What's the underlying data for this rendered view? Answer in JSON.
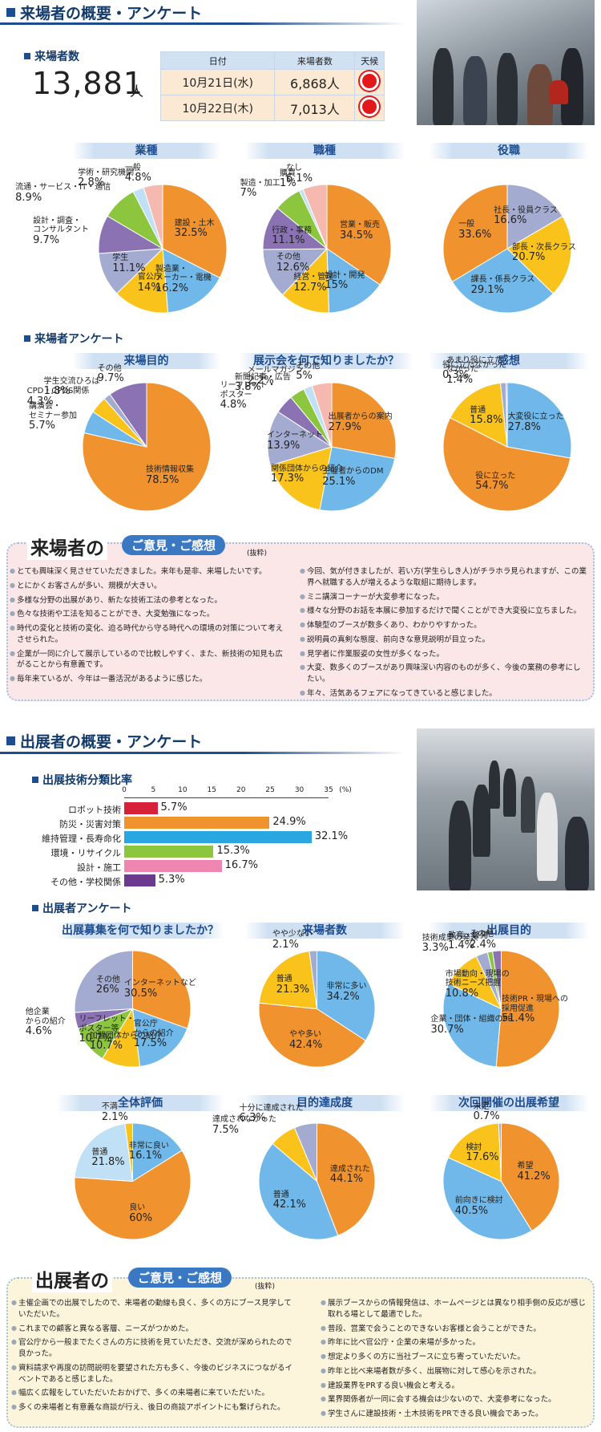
{
  "visitor_section": {
    "title": "来場者の概要・アンケート"
  },
  "visitor_count": {
    "label": "来場者数",
    "total": "13,881",
    "unit": "人"
  },
  "attendance_table": {
    "headers": [
      "日付",
      "来場者数",
      "天候"
    ],
    "rows": [
      {
        "date": "10月21日(水)",
        "count": "6,868人",
        "weather": "sunny"
      },
      {
        "date": "10月22日(木)",
        "count": "7,013人",
        "weather": "sunny"
      }
    ]
  },
  "survey_visitor": {
    "title": "来場者アンケート"
  },
  "exhibitor_section": {
    "title": "出展者の概要・アンケート"
  },
  "exhibit_class": {
    "title": "出展技術分類比率"
  },
  "survey_exhibitor": {
    "title": "出展者アンケート"
  },
  "visitor_opinions": {
    "title": "来場者の",
    "badge": "ご意見・ご感想",
    "note": "(抜粋)",
    "left": [
      "とても興味深く見させていただきました。来年も是非、来場したいです。",
      "とにかくお客さんが多い、規模が大きい。",
      "多様な分野の出展があり、新たな技術工法の参考となった。",
      "色々な技術や工法を知ることができ、大変勉強になった。",
      "時代の変化と技術の変化、迫る時代から守る時代への環境の対策について考えさせられた。",
      "企業が一同に介して展示しているので比較しやすく、また、新技術の知見も広がることから有意義です。",
      "毎年来ているが、今年は一番活況があるように感じた。"
    ],
    "right": [
      "今回、気が付きましたが、若い方(学生らしき人)がチラホラ見られますが、この業界へ就職する人が増えるような取組に期待します。",
      "ミニ講演コーナーが大変参考になった。",
      "様々な分野のお話を本展に参加するだけで聞くことができ大変役に立ちました。",
      "体験型のブースが数多くあり、わかりやすかった。",
      "説明員の真剣な態度、前向きな意見説明が目立った。",
      "見学者に作業服姿の女性が多くなった。",
      "大変、数多くのブースがあり興味深い内容のものが多く、今後の業務の参考にしたい。",
      "年々、活気あるフェアになってきていると感じました。"
    ]
  },
  "exhibitor_opinions": {
    "title": "出展者の",
    "badge": "ご意見・ご感想",
    "note": "(抜粋)",
    "left": [
      "主催企画での出展でしたので、来場者の動線も良く、多くの方にブース見学していただいた。",
      "これまでの顧客と異なる客層、ニーズがつかめた。",
      "官公庁から一般までたくさんの方に技術を見ていただき、交流が深められたので良かった。",
      "資料請求や再度の訪問説明を要望された方も多く、今後のビジネスにつながるイベントであると感じました。",
      "幅広く広報をしていただいたおかげで、多くの来場者に来ていただいた。",
      "多くの来場者と有意義な商談が行え、後日の商談アポイントにも繋げられた。"
    ],
    "right": [
      "展示ブースからの情報発信は、ホームページとは異なり相手側の反応が感じ取れる場として最適でした。",
      "普段、営業で会うことのできないお客様と会うことができた。",
      "昨年に比べ官公庁・企業の来場が多かった。",
      "想定より多くの方に当社ブースに立ち寄っていただいた。",
      "昨年と比べ来場者数が多く、出展物に対して感心を示された。",
      "建設業界をPRする良い機会と考える。",
      "業界関係者が一同に会する機会は少ないので、大変参考になった。",
      "学生さんに建設技術・土木技術をPRできる良い機会であった。"
    ]
  },
  "colors": {
    "orange": "#f0932f",
    "blue": "#6fb8e9",
    "yellow": "#f9c31b",
    "grey": "#a3acd0",
    "green": "#8cc63f",
    "purple": "#8a72b3",
    "pink": "#f6b9b0",
    "lightblue": "#bfe0f5",
    "red": "#d7203a",
    "navy": "#1d4d8e"
  },
  "chart_data": [
    {
      "id": "industry",
      "type": "pie",
      "title": "業種",
      "slices": [
        {
          "label": "建設・土木",
          "value": 32.5
        },
        {
          "label": "製造業・メーカー・電機",
          "value": 16.2
        },
        {
          "label": "官公庁",
          "value": 14
        },
        {
          "label": "学生",
          "value": 11.1
        },
        {
          "label": "設計・調査・コンサルタント",
          "value": 9.7
        },
        {
          "label": "流通・サービス・IT・通信",
          "value": 8.9
        },
        {
          "label": "学術・研究機関",
          "value": 2.8
        },
        {
          "label": "一般",
          "value": 4.8
        }
      ]
    },
    {
      "id": "job",
      "type": "pie",
      "title": "職種",
      "slices": [
        {
          "label": "営業・販売",
          "value": 34.5
        },
        {
          "label": "設計・開発",
          "value": 15
        },
        {
          "label": "経営・管理",
          "value": 12.7
        },
        {
          "label": "その他",
          "value": 12.6
        },
        {
          "label": "行政・事務",
          "value": 11.1
        },
        {
          "label": "製造・加工",
          "value": 7
        },
        {
          "label": "購買",
          "value": 1
        },
        {
          "label": "なし",
          "value": 6.1
        }
      ]
    },
    {
      "id": "position",
      "type": "pie",
      "title": "役職",
      "slices": [
        {
          "label": "社長・役員クラス",
          "value": 16.6
        },
        {
          "label": "部長・次長クラス",
          "value": 20.7
        },
        {
          "label": "課長・係長クラス",
          "value": 29.1
        },
        {
          "label": "一般",
          "value": 33.6
        }
      ]
    },
    {
      "id": "purpose",
      "type": "pie",
      "title": "来場目的",
      "slices": [
        {
          "label": "技術情報収集",
          "value": 78.5
        },
        {
          "label": "講演会・セミナー参加",
          "value": 5.7
        },
        {
          "label": "CPD・CPDS関係",
          "value": 4.3
        },
        {
          "label": "学生交流ひろば",
          "value": 1.8
        },
        {
          "label": "その他",
          "value": 9.7
        }
      ]
    },
    {
      "id": "how_know",
      "type": "pie",
      "title": "展示会を何で知りましたか？",
      "slices": [
        {
          "label": "出展者からの案内",
          "value": 27.9
        },
        {
          "label": "主催者からのDM",
          "value": 25.1
        },
        {
          "label": "関係団体からの紹介",
          "value": 17.3
        },
        {
          "label": "インターネット",
          "value": 13.9
        },
        {
          "label": "リーフレット・ポスター",
          "value": 4.8
        },
        {
          "label": "新聞記事・広告",
          "value": 3.8
        },
        {
          "label": "メールマガジン",
          "value": 2.2
        },
        {
          "label": "その他",
          "value": 5
        }
      ]
    },
    {
      "id": "impression",
      "type": "pie",
      "title": "感想",
      "slices": [
        {
          "label": "大変役に立った",
          "value": 27.8
        },
        {
          "label": "役に立った",
          "value": 54.7
        },
        {
          "label": "普通",
          "value": 15.8
        },
        {
          "label": "あまり役に立たなかった",
          "value": 1.4
        },
        {
          "label": "役に立たなかった",
          "value": 0.3
        }
      ]
    },
    {
      "id": "tech_class",
      "type": "bar",
      "title": "出展技術分類比率",
      "categories": [
        "ロボット技術",
        "防災・災害対策",
        "維持管理・長寿命化",
        "環境・リサイクル",
        "設計・施工",
        "その他・学校関係"
      ],
      "values": [
        5.7,
        24.9,
        32.1,
        15.3,
        16.7,
        5.3
      ],
      "xlim": [
        0,
        35
      ],
      "xticks": [
        0,
        5,
        10,
        15,
        20,
        25,
        30,
        35
      ],
      "xunit": "(%)"
    },
    {
      "id": "recruit",
      "type": "pie",
      "title": "出展募集を何で知りましたか？",
      "slices": [
        {
          "label": "インターネットなど",
          "value": 30.5
        },
        {
          "label": "官公庁からの紹介",
          "value": 17.5
        },
        {
          "label": "加盟団体からの紹介",
          "value": 10.7
        },
        {
          "label": "リーフレット・ポスター等",
          "value": 10.7
        },
        {
          "label": "他企業からの紹介",
          "value": 4.6
        },
        {
          "label": "その他",
          "value": 26
        }
      ]
    },
    {
      "id": "visitor_num",
      "type": "pie",
      "title": "来場者数",
      "slices": [
        {
          "label": "非常に多い",
          "value": 34.2
        },
        {
          "label": "やや多い",
          "value": 42.4
        },
        {
          "label": "普通",
          "value": 21.3
        },
        {
          "label": "やや少ない",
          "value": 2.1
        }
      ]
    },
    {
      "id": "exhibit_purpose",
      "type": "pie",
      "title": "出展目的",
      "slices": [
        {
          "label": "技術PR・現場への採用促進",
          "value": 51.4
        },
        {
          "label": "企業・団体・組織のPR",
          "value": 30.7
        },
        {
          "label": "市場動向・現場の技術ニーズ把握",
          "value": 10.8
        },
        {
          "label": "技術成果の発表",
          "value": 3.3
        },
        {
          "label": "教育・啓発",
          "value": 1.4
        },
        {
          "label": "その他",
          "value": 2.4
        }
      ]
    },
    {
      "id": "overall",
      "type": "pie",
      "title": "全体評価",
      "slices": [
        {
          "label": "非常に良い",
          "value": 16.1
        },
        {
          "label": "良い",
          "value": 60
        },
        {
          "label": "普通",
          "value": 21.8
        },
        {
          "label": "不満",
          "value": 2.1
        }
      ]
    },
    {
      "id": "achieve",
      "type": "pie",
      "title": "目的達成度",
      "slices": [
        {
          "label": "達成された",
          "value": 44.1
        },
        {
          "label": "普通",
          "value": 42.1
        },
        {
          "label": "達成されなかった",
          "value": 7.5
        },
        {
          "label": "十分に達成された",
          "value": 6.3
        }
      ]
    },
    {
      "id": "next",
      "type": "pie",
      "title": "次回開催の出展希望",
      "slices": [
        {
          "label": "希望",
          "value": 41.2
        },
        {
          "label": "前向きに検討",
          "value": 40.5
        },
        {
          "label": "検討",
          "value": 17.6
        },
        {
          "label": "未定",
          "value": 0.7
        }
      ]
    }
  ],
  "pie_labels": {
    "industry": [
      [
        "建設・土木",
        "32.5%"
      ],
      [
        "製造業・",
        "メーカー・電機",
        "16.2%"
      ],
      [
        "官公庁",
        "14%"
      ],
      [
        "学生",
        "11.1%"
      ],
      [
        "設計・調査・",
        "コンサルタント",
        "9.7%"
      ],
      [
        "流通・サービス・IT・通信",
        "8.9%"
      ],
      [
        "学術・研究機関",
        "2.8%"
      ],
      [
        "一般",
        "4.8%"
      ]
    ],
    "job": [
      [
        "営業・販売",
        "34.5%"
      ],
      [
        "設計・開発",
        "15%"
      ],
      [
        "経営・管理",
        "12.7%"
      ],
      [
        "その他",
        "12.6%"
      ],
      [
        "行政・事務",
        "11.1%"
      ],
      [
        "製造・加工",
        "7%"
      ],
      [
        "購買",
        "1%"
      ],
      [
        "なし",
        "6.1%"
      ]
    ],
    "position": [
      [
        "社長・役員クラス",
        "16.6%"
      ],
      [
        "部長・次長クラス",
        "20.7%"
      ],
      [
        "課長・係長クラス",
        "29.1%"
      ],
      [
        "一般",
        "33.6%"
      ]
    ],
    "purpose": [
      [
        "技術情報収集",
        "78.5%"
      ],
      [
        "講演会・",
        "セミナー参加",
        "5.7%"
      ],
      [
        "CPD・CPDS関係",
        "4.3%"
      ],
      [
        "学生交流ひろば",
        "1.8%"
      ],
      [
        "その他",
        "9.7%"
      ]
    ],
    "how_know": [
      [
        "出展者からの案内",
        "27.9%"
      ],
      [
        "主催者からのDM",
        "25.1%"
      ],
      [
        "関係団体からの紹介",
        "17.3%"
      ],
      [
        "インターネット",
        "13.9%"
      ],
      [
        "リーフレット・",
        "ポスター",
        "4.8%"
      ],
      [
        "新聞記事・広告",
        "3.8%"
      ],
      [
        "メールマガジン",
        "2.2%"
      ],
      [
        "その他",
        "5%"
      ]
    ],
    "impression": [
      [
        "大変役に立った",
        "27.8%"
      ],
      [
        "役に立った",
        "54.7%"
      ],
      [
        "普通",
        "15.8%"
      ],
      [
        "あまり役に立た",
        "なかった",
        "1.4%"
      ],
      [
        "役に立たなかった",
        "0.3%"
      ]
    ],
    "recruit": [
      [
        "インターネットなど",
        "30.5%"
      ],
      [
        "官公庁",
        "からの紹介",
        "17.5%"
      ],
      [
        "加盟団体からの紹介",
        "10.7%"
      ],
      [
        "リーフレット・",
        "ポスター等",
        "10.7%"
      ],
      [
        "他企業",
        "からの紹介",
        "4.6%"
      ],
      [
        "その他",
        "26%"
      ]
    ],
    "visitor_num": [
      [
        "非常に多い",
        "34.2%"
      ],
      [
        "やや多い",
        "42.4%"
      ],
      [
        "普通",
        "21.3%"
      ],
      [
        "やや少ない",
        "2.1%"
      ]
    ],
    "exhibit_purpose": [
      [
        "技術PR・現場への",
        "採用促進",
        "51.4%"
      ],
      [
        "企業・団体・組織のPR",
        "30.7%"
      ],
      [
        "市場動向・現場の",
        "技術ニーズ把握",
        "10.8%"
      ],
      [
        "技術成果の発表",
        "3.3%"
      ],
      [
        "教育・啓発",
        "1.4%"
      ],
      [
        "その他",
        "2.4%"
      ]
    ],
    "overall": [
      [
        "非常に良い",
        "16.1%"
      ],
      [
        "良い",
        "60%"
      ],
      [
        "普通",
        "21.8%"
      ],
      [
        "不満",
        "2.1%"
      ]
    ],
    "achieve": [
      [
        "達成された",
        "44.1%"
      ],
      [
        "普通",
        "42.1%"
      ],
      [
        "達成されなかった",
        "7.5%"
      ],
      [
        "十分に達成された",
        "6.3%"
      ]
    ],
    "next": [
      [
        "希望",
        "41.2%"
      ],
      [
        "前向きに検討",
        "40.5%"
      ],
      [
        "検討",
        "17.6%"
      ],
      [
        "未定",
        "0.7%"
      ]
    ]
  }
}
